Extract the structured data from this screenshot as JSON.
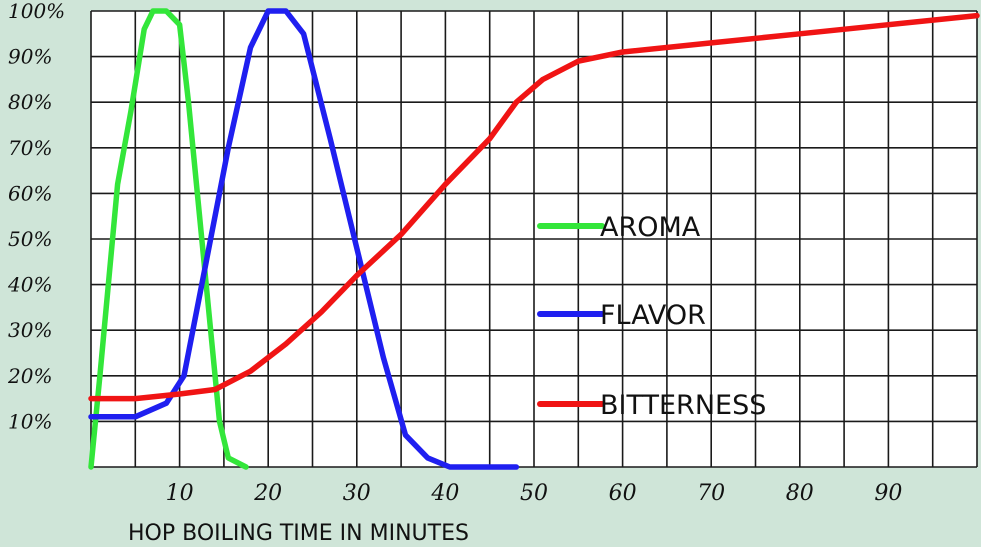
{
  "chart_data": {
    "type": "line",
    "title": "",
    "xlabel": "HOP BOILING TIME IN MINUTES",
    "ylabel": "",
    "xlim": [
      0,
      100
    ],
    "ylim": [
      0,
      100
    ],
    "grid": true,
    "legend_position": "right",
    "x_ticks": [
      {
        "value": 10,
        "label": "10"
      },
      {
        "value": 20,
        "label": "20"
      },
      {
        "value": 30,
        "label": "30"
      },
      {
        "value": 40,
        "label": "40"
      },
      {
        "value": 50,
        "label": "50"
      },
      {
        "value": 60,
        "label": "60"
      },
      {
        "value": 70,
        "label": "70"
      },
      {
        "value": 80,
        "label": "80"
      },
      {
        "value": 90,
        "label": "90"
      }
    ],
    "y_ticks": [
      {
        "value": 10,
        "label": "10%"
      },
      {
        "value": 20,
        "label": "20%"
      },
      {
        "value": 30,
        "label": "30%"
      },
      {
        "value": 40,
        "label": "40%"
      },
      {
        "value": 50,
        "label": "50%"
      },
      {
        "value": 60,
        "label": "60%"
      },
      {
        "value": 70,
        "label": "70%"
      },
      {
        "value": 80,
        "label": "80%"
      },
      {
        "value": 90,
        "label": "90%"
      },
      {
        "value": 100,
        "label": "100%"
      }
    ],
    "series": [
      {
        "name": "AROMA",
        "color": "#33e63a",
        "points": [
          [
            0,
            0
          ],
          [
            1,
            20
          ],
          [
            3,
            62
          ],
          [
            4.5,
            78
          ],
          [
            6,
            96
          ],
          [
            7,
            100
          ],
          [
            8.5,
            100
          ],
          [
            10,
            97
          ],
          [
            11,
            80
          ],
          [
            13,
            40
          ],
          [
            14.5,
            10
          ],
          [
            15.5,
            2
          ],
          [
            17.5,
            0
          ]
        ]
      },
      {
        "name": "FLAVOR",
        "color": "#1f1ff0",
        "points": [
          [
            0,
            11
          ],
          [
            5,
            11
          ],
          [
            8.5,
            14
          ],
          [
            10.5,
            20
          ],
          [
            13,
            45
          ],
          [
            15.5,
            70
          ],
          [
            18,
            92
          ],
          [
            20,
            100
          ],
          [
            22,
            100
          ],
          [
            24,
            95
          ],
          [
            27,
            72
          ],
          [
            30,
            48
          ],
          [
            33,
            24
          ],
          [
            35.5,
            7
          ],
          [
            38,
            2
          ],
          [
            40.5,
            0
          ],
          [
            48,
            0
          ]
        ]
      },
      {
        "name": "BITTERNESS",
        "color": "#f01414",
        "points": [
          [
            0,
            15
          ],
          [
            5,
            15
          ],
          [
            10,
            16
          ],
          [
            14,
            17
          ],
          [
            18,
            21
          ],
          [
            22,
            27
          ],
          [
            26,
            34
          ],
          [
            30,
            42
          ],
          [
            35,
            51
          ],
          [
            40,
            62
          ],
          [
            45,
            72
          ],
          [
            48,
            80
          ],
          [
            51,
            85
          ],
          [
            55,
            89
          ],
          [
            60,
            91
          ],
          [
            70,
            93
          ],
          [
            80,
            95
          ],
          [
            90,
            97
          ],
          [
            100,
            99
          ]
        ]
      }
    ]
  }
}
